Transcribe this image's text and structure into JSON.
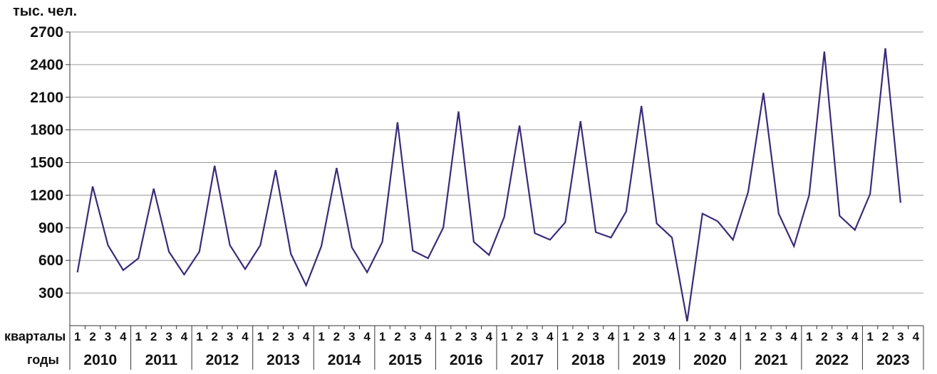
{
  "chart_data": {
    "type": "line",
    "title": "",
    "y_unit_label": "тыс. чел.",
    "ylim": [
      0,
      2700
    ],
    "yticks": [
      300,
      600,
      900,
      1200,
      1500,
      1800,
      2100,
      2400,
      2700
    ],
    "grid": true,
    "quarter_row_label": "кварталы",
    "year_row_label": "годы",
    "quarter_labels": [
      "1",
      "2",
      "3",
      "4"
    ],
    "years": [
      "2010",
      "2011",
      "2012",
      "2013",
      "2014",
      "2015",
      "2016",
      "2017",
      "2018",
      "2019",
      "2020",
      "2021",
      "2022",
      "2023"
    ],
    "colors": {
      "line": "#3b2a7a",
      "grid": "#9a9a9a",
      "axis": "#333333"
    },
    "series": [
      {
        "values": [
          490,
          1280,
          740,
          510,
          620,
          1260,
          680,
          470,
          680,
          1470,
          740,
          520,
          740,
          1430,
          660,
          370,
          730,
          1450,
          720,
          490,
          770,
          1870,
          690,
          620,
          900,
          1970,
          770,
          650,
          1000,
          1840,
          850,
          790,
          950,
          1880,
          860,
          810,
          1050,
          2020,
          940,
          810,
          40,
          1030,
          960,
          790,
          1230,
          2140,
          1030,
          730,
          1200,
          2520,
          1010,
          880,
          1210,
          2550,
          1130
        ]
      }
    ]
  }
}
